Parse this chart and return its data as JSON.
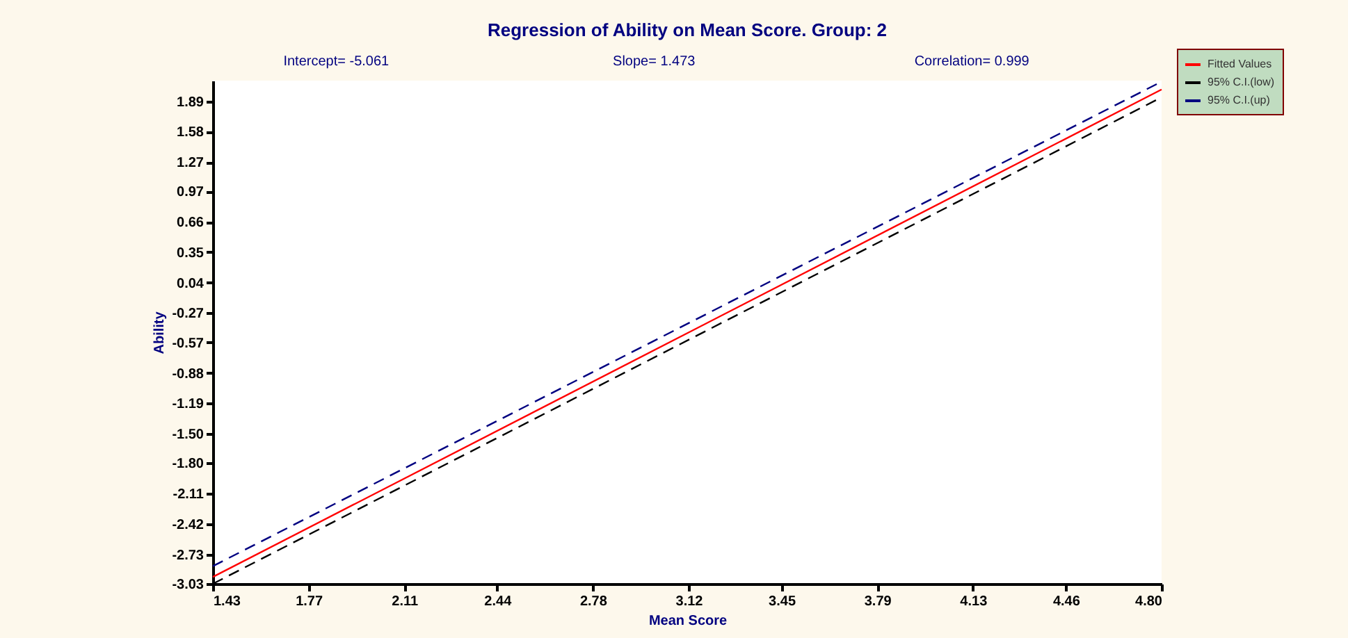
{
  "chart_data": {
    "type": "line",
    "title": "Regression of Ability on Mean Score.    Group: 2",
    "xlabel": "Mean Score",
    "ylabel": "Ability",
    "annotations": [
      "Intercept=   -5.061",
      "Slope=    1.473",
      "Correlation= 0.999"
    ],
    "x": [
      1.43,
      4.8
    ],
    "series": [
      {
        "name": "Fitted Values",
        "color": "#ff0000",
        "values": [
          -2.96,
          2.01
        ],
        "line_style": "solid"
      },
      {
        "name": "95% C.I.(low)",
        "color": "#000000",
        "values": [
          -3.03,
          1.93
        ],
        "line_style": "dashed"
      },
      {
        "name": "95% C.I.(up)",
        "color": "#000080",
        "values": [
          -2.85,
          2.09
        ],
        "line_style": "dashed"
      }
    ],
    "xlim": [
      1.43,
      4.8
    ],
    "xticks": [
      1.43,
      1.77,
      2.11,
      2.44,
      2.78,
      3.12,
      3.45,
      3.79,
      4.13,
      4.46,
      {
        "value": 4.8,
        "label": "4.80"
      }
    ],
    "ylim": [
      -3.03,
      2.1
    ],
    "yticks": [
      -3.03,
      -2.73,
      -2.42,
      -2.11,
      {
        "value": -1.8,
        "label": "-1.80"
      },
      {
        "value": -1.5,
        "label": "-1.50"
      },
      -1.19,
      -0.88,
      -0.57,
      -0.27,
      0.04,
      0.35,
      0.66,
      0.97,
      1.27,
      1.58,
      1.89
    ],
    "grid": false,
    "legend": "top right",
    "marker": "none"
  }
}
